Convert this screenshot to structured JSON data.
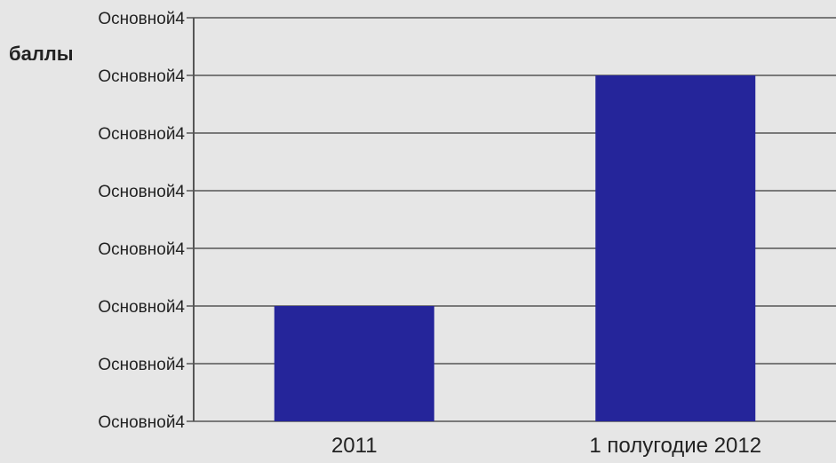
{
  "chart_data": {
    "type": "bar",
    "title": "",
    "xlabel": "",
    "ylabel": "баллы",
    "categories": [
      "2011",
      "1 полугодие 2012"
    ],
    "series": [
      {
        "values": [
          2,
          6
        ]
      }
    ],
    "ylim": [
      0,
      7
    ],
    "y_ticks": [
      0,
      1,
      2,
      3,
      4,
      5,
      6,
      7
    ],
    "y_tick_labels": [
      "Основной4",
      "Основной4",
      "Основной4",
      "Основной4",
      "Основной4",
      "Основной4",
      "Основной4",
      "Основной4"
    ],
    "grid": true,
    "legend": "none",
    "colors": {
      "bar": "#25259a",
      "axis": "#555555",
      "text": "#222222"
    }
  }
}
